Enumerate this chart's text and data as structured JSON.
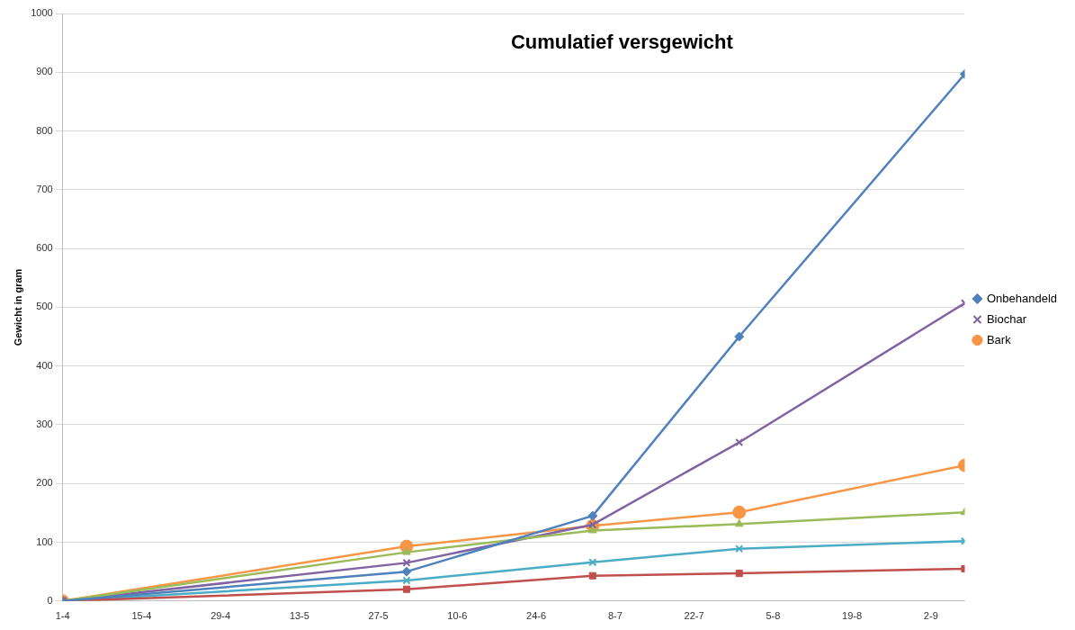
{
  "chart_data": {
    "type": "line",
    "title": "Cumulatief versgewicht",
    "ylabel": "Gewicht in gram",
    "x": [
      "--04-01",
      "--06-01",
      "--07-04",
      "--07-30",
      "--09-08"
    ],
    "series": [
      {
        "name": "Onbehandeld",
        "color": "#4f81bd",
        "marker": "diamond",
        "values": [
          0,
          50,
          145,
          450,
          897
        ]
      },
      {
        "color": "#c0504d",
        "marker": "square",
        "values": [
          0,
          20,
          43,
          47,
          55
        ]
      },
      {
        "color": "#9bbb59",
        "marker": "triangle",
        "values": [
          0,
          83,
          120,
          131,
          151
        ]
      },
      {
        "name": "Biochar",
        "color": "#8064a2",
        "marker": "cross",
        "values": [
          0,
          65,
          130,
          270,
          507
        ]
      },
      {
        "color": "#4bacc6",
        "marker": "cross",
        "values": [
          0,
          35,
          66,
          89,
          102
        ]
      },
      {
        "name": "Bark",
        "color": "#f79646",
        "marker": "circle",
        "values": [
          0,
          93,
          128,
          151,
          231
        ]
      }
    ],
    "xlim": [
      "--04-01",
      "--09-08"
    ],
    "xticks": [
      {
        "value": "--04-01",
        "label": "1-4"
      },
      {
        "value": "--04-15",
        "label": "15-4"
      },
      {
        "value": "--04-29",
        "label": "29-4"
      },
      {
        "value": "--05-13",
        "label": "13-5"
      },
      {
        "value": "--05-27",
        "label": "27-5"
      },
      {
        "value": "--06-10",
        "label": "10-6"
      },
      {
        "value": "--06-24",
        "label": "24-6"
      },
      {
        "value": "--07-08",
        "label": "8-7"
      },
      {
        "value": "--07-22",
        "label": "22-7"
      },
      {
        "value": "--08-05",
        "label": "5-8"
      },
      {
        "value": "--08-19",
        "label": "19-8"
      },
      {
        "value": "--09-02",
        "label": "2-9"
      }
    ],
    "ylim": [
      0,
      1000
    ],
    "yticks": [
      0,
      100,
      200,
      300,
      400,
      500,
      600,
      700,
      800,
      900,
      1000
    ],
    "grid": "y",
    "legend": "right",
    "line_style": "solid"
  }
}
